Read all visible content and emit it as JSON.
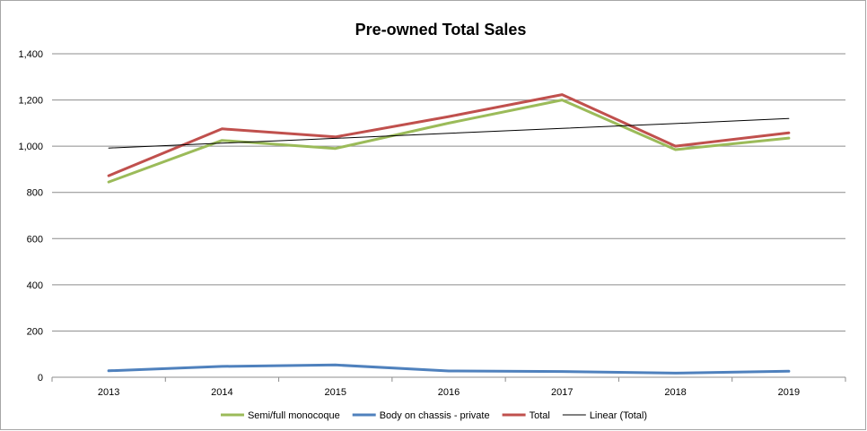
{
  "chart_data": {
    "type": "line",
    "title": "Pre-owned Total Sales",
    "x": [
      "2013",
      "2014",
      "2015",
      "2016",
      "2017",
      "2018",
      "2019"
    ],
    "yticks": [
      "0",
      "200",
      "400",
      "600",
      "800",
      "1,000",
      "1,200",
      "1,400"
    ],
    "ylim": [
      0,
      1400
    ],
    "grid": true,
    "legend_position": "bottom",
    "series": [
      {
        "name": "Semi/full monocoque",
        "color": "#9bbb59",
        "values": [
          845,
          1025,
          990,
          1100,
          1200,
          985,
          1035
        ]
      },
      {
        "name": "Body on chassis - private",
        "color": "#4f81bd",
        "values": [
          28,
          47,
          53,
          27,
          25,
          18,
          26
        ]
      },
      {
        "name": "Total",
        "color": "#c0504d",
        "values": [
          872,
          1075,
          1040,
          1128,
          1223,
          1000,
          1058
        ]
      },
      {
        "name": "Linear (Total)",
        "color": "#000000",
        "values": [
          992,
          1013,
          1034,
          1056,
          1077,
          1098,
          1120
        ]
      }
    ]
  }
}
